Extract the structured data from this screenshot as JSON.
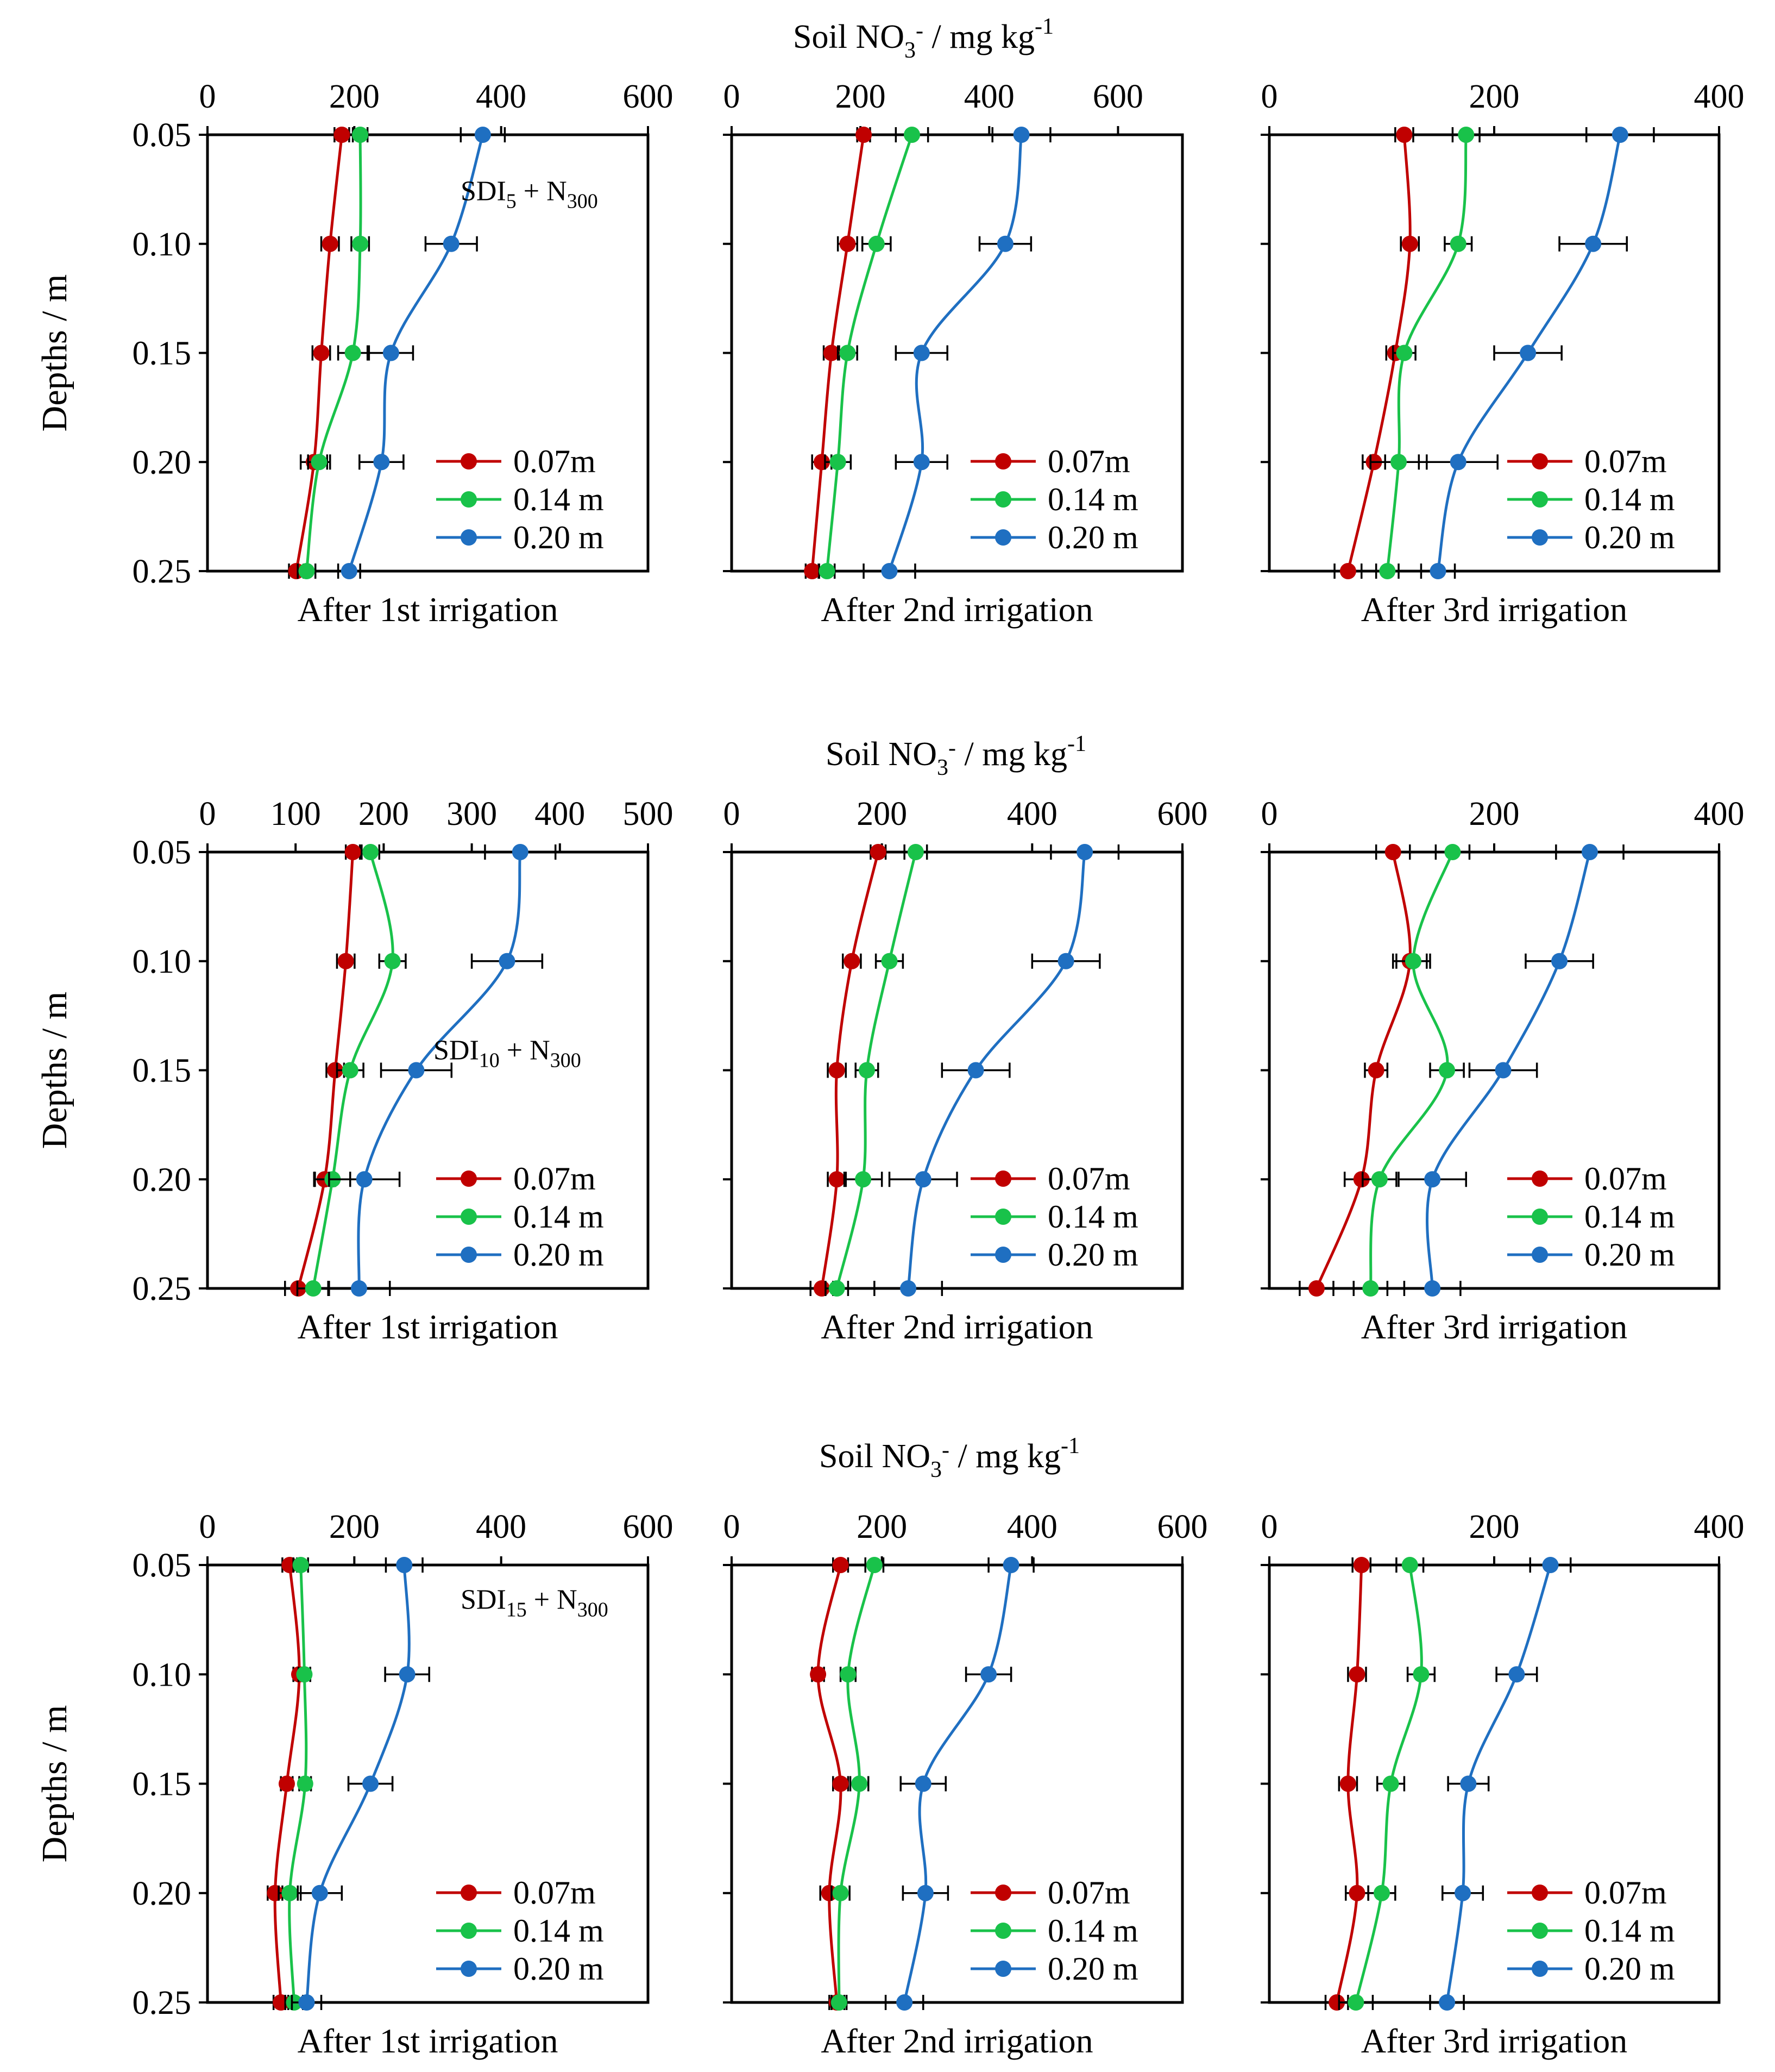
{
  "figure": {
    "rows": [
      {
        "title_text": "Soil NO",
        "title_sub": "3",
        "title_sup": "-",
        "title_rest": " / mg kg",
        "title_sup2": "-1",
        "ylabel": "Depths / m",
        "annotation": {
          "main": "SDI",
          "sub": "5",
          "plus": " + N",
          "sub2": "300"
        }
      },
      {
        "title_text": "Soil NO",
        "title_sub": "3",
        "title_sup": "-",
        "title_rest": " / mg kg",
        "title_sup2": "-1",
        "ylabel": "Depths / m",
        "annotation": {
          "main": "SDI",
          "sub": "10",
          "plus": " + N",
          "sub2": "300"
        }
      },
      {
        "title_text": "Soil NO",
        "title_sub": "3",
        "title_sup": "-",
        "title_rest": " / mg kg",
        "title_sup2": "-1",
        "ylabel": "Depths / m",
        "annotation": {
          "main": "SDI",
          "sub": "15",
          "plus": " + N",
          "sub2": "300"
        }
      }
    ]
  },
  "colors": {
    "s007": "#c00000",
    "s014": "#19c24a",
    "s020": "#1f6fc1"
  },
  "chart_data": [
    {
      "type": "line",
      "row": 0,
      "col": 0,
      "caption": "After 1st irrigation",
      "xlim": [
        0,
        600
      ],
      "xticks": [
        0,
        200,
        400,
        600
      ],
      "xtick_labels": [
        "0",
        "200",
        "400",
        "600"
      ],
      "ylim": [
        0.05,
        0.25
      ],
      "yticks": [
        0.05,
        0.1,
        0.15,
        0.2,
        0.25
      ],
      "ytick_labels": [
        "0.05",
        "0.10",
        "0.15",
        "0.20",
        "0.25"
      ],
      "legend": "bottom-right",
      "series": [
        {
          "name": "0.07m",
          "color": "#c00000",
          "depths": [
            0.05,
            0.1,
            0.15,
            0.2,
            0.25
          ],
          "values": [
            183,
            167,
            155,
            145,
            121
          ],
          "errors": [
            10,
            12,
            12,
            18,
            10
          ]
        },
        {
          "name": "0.14 m",
          "color": "#19c24a",
          "depths": [
            0.05,
            0.1,
            0.15,
            0.2,
            0.25
          ],
          "values": [
            208,
            208,
            198,
            152,
            135
          ],
          "errors": [
            10,
            12,
            20,
            15,
            12
          ]
        },
        {
          "name": "0.20 m",
          "color": "#1f6fc1",
          "depths": [
            0.05,
            0.1,
            0.15,
            0.2,
            0.25
          ],
          "values": [
            375,
            332,
            250,
            237,
            193
          ],
          "errors": [
            30,
            35,
            30,
            30,
            15
          ]
        }
      ]
    },
    {
      "type": "line",
      "row": 0,
      "col": 1,
      "caption": "After 2nd irrigation",
      "xlim": [
        0,
        700
      ],
      "xticks": [
        0,
        200,
        400,
        600
      ],
      "xtick_labels": [
        "0",
        "200",
        "400",
        "600"
      ],
      "ylim": [
        0.05,
        0.25
      ],
      "yticks": [
        0.05,
        0.1,
        0.15,
        0.2,
        0.25
      ],
      "ytick_labels": [
        "0.05",
        "0.10",
        "0.15",
        "0.20",
        "0.25"
      ],
      "legend": "bottom-right",
      "series": [
        {
          "name": "0.07m",
          "color": "#c00000",
          "depths": [
            0.05,
            0.1,
            0.15,
            0.2,
            0.25
          ],
          "values": [
            205,
            180,
            155,
            140,
            125
          ],
          "errors": [
            10,
            15,
            12,
            15,
            10
          ]
        },
        {
          "name": "0.14 m",
          "color": "#19c24a",
          "depths": [
            0.05,
            0.1,
            0.15,
            0.2,
            0.25
          ],
          "values": [
            280,
            225,
            180,
            165,
            148
          ],
          "errors": [
            25,
            22,
            15,
            20,
            12
          ]
        },
        {
          "name": "0.20 m",
          "color": "#1f6fc1",
          "depths": [
            0.05,
            0.1,
            0.15,
            0.2,
            0.25
          ],
          "values": [
            450,
            425,
            295,
            295,
            245
          ],
          "errors": [
            45,
            40,
            40,
            40,
            40
          ]
        }
      ]
    },
    {
      "type": "line",
      "row": 0,
      "col": 2,
      "caption": "After 3rd irrigation",
      "xlim": [
        0,
        400
      ],
      "xticks": [
        0,
        200,
        400
      ],
      "xtick_labels": [
        "0",
        "200",
        "400"
      ],
      "ylim": [
        0.05,
        0.25
      ],
      "yticks": [
        0.05,
        0.1,
        0.15,
        0.2,
        0.25
      ],
      "ytick_labels": [
        "0.05",
        "0.10",
        "0.15",
        "0.20",
        "0.25"
      ],
      "legend": "bottom-right",
      "series": [
        {
          "name": "0.07m",
          "color": "#c00000",
          "depths": [
            0.05,
            0.1,
            0.15,
            0.2,
            0.25
          ],
          "values": [
            120,
            125,
            112,
            93,
            70
          ],
          "errors": [
            8,
            8,
            8,
            10,
            12
          ]
        },
        {
          "name": "0.14 m",
          "color": "#19c24a",
          "depths": [
            0.05,
            0.1,
            0.15,
            0.2,
            0.25
          ],
          "values": [
            175,
            168,
            120,
            115,
            105
          ],
          "errors": [
            12,
            12,
            10,
            25,
            10
          ]
        },
        {
          "name": "0.20 m",
          "color": "#1f6fc1",
          "depths": [
            0.05,
            0.1,
            0.15,
            0.2,
            0.25
          ],
          "values": [
            312,
            288,
            230,
            168,
            150
          ],
          "errors": [
            30,
            30,
            30,
            35,
            15
          ]
        }
      ]
    },
    {
      "type": "line",
      "row": 1,
      "col": 0,
      "caption": "After 1st irrigation",
      "xlim": [
        0,
        500
      ],
      "xticks": [
        0,
        100,
        200,
        300,
        400,
        500
      ],
      "xtick_labels": [
        "0",
        "100",
        "200",
        "300",
        "400",
        "500"
      ],
      "ylim": [
        0.05,
        0.25
      ],
      "yticks": [
        0.05,
        0.1,
        0.15,
        0.2,
        0.25
      ],
      "ytick_labels": [
        "0.05",
        "0.10",
        "0.15",
        "0.20",
        "0.25"
      ],
      "legend": "bottom-right",
      "series": [
        {
          "name": "0.07m",
          "color": "#c00000",
          "depths": [
            0.05,
            0.1,
            0.15,
            0.2,
            0.25
          ],
          "values": [
            165,
            157,
            145,
            133,
            103
          ],
          "errors": [
            8,
            10,
            10,
            12,
            15
          ]
        },
        {
          "name": "0.14 m",
          "color": "#19c24a",
          "depths": [
            0.05,
            0.1,
            0.15,
            0.2,
            0.25
          ],
          "values": [
            185,
            210,
            162,
            142,
            120
          ],
          "errors": [
            10,
            15,
            15,
            20,
            18
          ]
        },
        {
          "name": "0.20 m",
          "color": "#1f6fc1",
          "depths": [
            0.05,
            0.1,
            0.15,
            0.2,
            0.25
          ],
          "values": [
            355,
            340,
            237,
            178,
            172
          ],
          "errors": [
            40,
            40,
            40,
            40,
            35
          ]
        }
      ]
    },
    {
      "type": "line",
      "row": 1,
      "col": 1,
      "caption": "After 2nd irrigation",
      "xlim": [
        0,
        600
      ],
      "xticks": [
        0,
        200,
        400,
        600
      ],
      "xtick_labels": [
        "0",
        "200",
        "400",
        "600"
      ],
      "ylim": [
        0.05,
        0.25
      ],
      "yticks": [
        0.05,
        0.1,
        0.15,
        0.2,
        0.25
      ],
      "ytick_labels": [
        "0.05",
        "0.10",
        "0.15",
        "0.20",
        "0.25"
      ],
      "legend": "bottom-right",
      "series": [
        {
          "name": "0.07m",
          "color": "#c00000",
          "depths": [
            0.05,
            0.1,
            0.15,
            0.2,
            0.25
          ],
          "values": [
            195,
            160,
            140,
            140,
            120
          ],
          "errors": [
            10,
            12,
            12,
            12,
            15
          ]
        },
        {
          "name": "0.14 m",
          "color": "#19c24a",
          "depths": [
            0.05,
            0.1,
            0.15,
            0.2,
            0.25
          ],
          "values": [
            245,
            210,
            180,
            175,
            140
          ],
          "errors": [
            15,
            18,
            15,
            25,
            15
          ]
        },
        {
          "name": "0.20 m",
          "color": "#1f6fc1",
          "depths": [
            0.05,
            0.1,
            0.15,
            0.2,
            0.25
          ],
          "values": [
            470,
            445,
            325,
            255,
            235
          ],
          "errors": [
            45,
            45,
            45,
            45,
            45
          ]
        }
      ]
    },
    {
      "type": "line",
      "row": 1,
      "col": 2,
      "caption": "After 3rd irrigation",
      "xlim": [
        0,
        400
      ],
      "xticks": [
        0,
        200,
        400
      ],
      "xtick_labels": [
        "0",
        "200",
        "400"
      ],
      "ylim": [
        0.05,
        0.25
      ],
      "yticks": [
        0.05,
        0.1,
        0.15,
        0.2,
        0.25
      ],
      "ytick_labels": [
        "0.05",
        "0.10",
        "0.15",
        "0.20",
        "0.25"
      ],
      "legend": "bottom-right",
      "series": [
        {
          "name": "0.07m",
          "color": "#c00000",
          "depths": [
            0.05,
            0.1,
            0.15,
            0.2,
            0.25
          ],
          "values": [
            110,
            125,
            95,
            82,
            42
          ],
          "errors": [
            15,
            15,
            10,
            15,
            15
          ]
        },
        {
          "name": "0.14 m",
          "color": "#19c24a",
          "depths": [
            0.05,
            0.1,
            0.15,
            0.2,
            0.25
          ],
          "values": [
            163,
            128,
            158,
            98,
            90
          ],
          "errors": [
            15,
            15,
            15,
            15,
            15
          ]
        },
        {
          "name": "0.20 m",
          "color": "#1f6fc1",
          "depths": [
            0.05,
            0.1,
            0.15,
            0.2,
            0.25
          ],
          "values": [
            285,
            258,
            208,
            145,
            145
          ],
          "errors": [
            30,
            30,
            30,
            30,
            25
          ]
        }
      ]
    },
    {
      "type": "line",
      "row": 2,
      "col": 0,
      "caption": "After 1st irrigation",
      "xlim": [
        0,
        600
      ],
      "xticks": [
        0,
        200,
        400,
        600
      ],
      "xtick_labels": [
        "0",
        "200",
        "400",
        "600"
      ],
      "ylim": [
        0.05,
        0.25
      ],
      "yticks": [
        0.05,
        0.1,
        0.15,
        0.2,
        0.25
      ],
      "ytick_labels": [
        "0.05",
        "0.10",
        "0.15",
        "0.20",
        "0.25"
      ],
      "legend": "bottom-right",
      "series": [
        {
          "name": "0.07m",
          "color": "#c00000",
          "depths": [
            0.05,
            0.1,
            0.15,
            0.2,
            0.25
          ],
          "values": [
            112,
            125,
            108,
            92,
            100
          ],
          "errors": [
            10,
            8,
            8,
            10,
            10
          ]
        },
        {
          "name": "0.14 m",
          "color": "#19c24a",
          "depths": [
            0.05,
            0.1,
            0.15,
            0.2,
            0.25
          ],
          "values": [
            127,
            132,
            133,
            112,
            118
          ],
          "errors": [
            10,
            8,
            8,
            15,
            12
          ]
        },
        {
          "name": "0.20 m",
          "color": "#1f6fc1",
          "depths": [
            0.05,
            0.1,
            0.15,
            0.2,
            0.25
          ],
          "values": [
            268,
            272,
            222,
            153,
            135
          ],
          "errors": [
            25,
            30,
            30,
            30,
            20
          ]
        }
      ]
    },
    {
      "type": "line",
      "row": 2,
      "col": 1,
      "caption": "After 2nd irrigation",
      "xlim": [
        0,
        600
      ],
      "xticks": [
        0,
        200,
        400,
        600
      ],
      "xtick_labels": [
        "0",
        "200",
        "400",
        "600"
      ],
      "ylim": [
        0.05,
        0.25
      ],
      "yticks": [
        0.05,
        0.1,
        0.15,
        0.2,
        0.25
      ],
      "ytick_labels": [
        "0.05",
        "0.10",
        "0.15",
        "0.20",
        "0.25"
      ],
      "legend": "bottom-right",
      "series": [
        {
          "name": "0.07m",
          "color": "#c00000",
          "depths": [
            0.05,
            0.1,
            0.15,
            0.2,
            0.25
          ],
          "values": [
            145,
            115,
            145,
            130,
            140
          ],
          "errors": [
            10,
            8,
            10,
            12,
            10
          ]
        },
        {
          "name": "0.14 m",
          "color": "#19c24a",
          "depths": [
            0.05,
            0.1,
            0.15,
            0.2,
            0.25
          ],
          "values": [
            190,
            155,
            170,
            145,
            143
          ],
          "errors": [
            12,
            10,
            12,
            12,
            10
          ]
        },
        {
          "name": "0.20 m",
          "color": "#1f6fc1",
          "depths": [
            0.05,
            0.1,
            0.15,
            0.2,
            0.25
          ],
          "values": [
            372,
            342,
            255,
            258,
            230
          ],
          "errors": [
            30,
            30,
            30,
            30,
            25
          ]
        }
      ]
    },
    {
      "type": "line",
      "row": 2,
      "col": 2,
      "caption": "After 3rd irrigation",
      "xlim": [
        0,
        400
      ],
      "xticks": [
        0,
        200,
        400
      ],
      "xtick_labels": [
        "0",
        "200",
        "400"
      ],
      "ylim": [
        0.05,
        0.25
      ],
      "yticks": [
        0.05,
        0.1,
        0.15,
        0.2,
        0.25
      ],
      "ytick_labels": [
        "0.05",
        "0.10",
        "0.15",
        "0.20",
        "0.25"
      ],
      "legend": "bottom-right",
      "series": [
        {
          "name": "0.07m",
          "color": "#c00000",
          "depths": [
            0.05,
            0.1,
            0.15,
            0.2,
            0.25
          ],
          "values": [
            82,
            78,
            70,
            78,
            60
          ],
          "errors": [
            8,
            8,
            8,
            10,
            10
          ]
        },
        {
          "name": "0.14 m",
          "color": "#19c24a",
          "depths": [
            0.05,
            0.1,
            0.15,
            0.2,
            0.25
          ],
          "values": [
            125,
            135,
            108,
            100,
            77
          ],
          "errors": [
            12,
            12,
            12,
            12,
            15
          ]
        },
        {
          "name": "0.20 m",
          "color": "#1f6fc1",
          "depths": [
            0.05,
            0.1,
            0.15,
            0.2,
            0.25
          ],
          "values": [
            250,
            220,
            177,
            172,
            158
          ],
          "errors": [
            18,
            18,
            18,
            18,
            15
          ]
        }
      ]
    }
  ]
}
